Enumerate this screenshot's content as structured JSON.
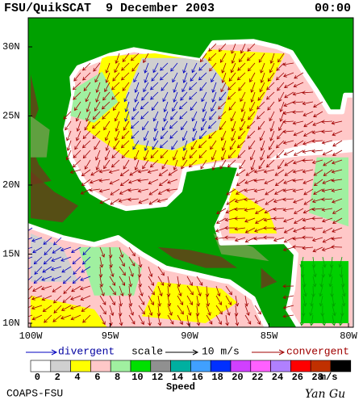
{
  "header": {
    "title": "FSU/QuikSCAT  9 December 2003",
    "time": "00:00"
  },
  "map": {
    "lat_labels": [
      "30N",
      "25N",
      "20N",
      "15N",
      "10N"
    ],
    "lon_labels": [
      "100W",
      "95W",
      "90W",
      "85W",
      "80W"
    ]
  },
  "legend": {
    "divergent": "divergent",
    "scale": "scale",
    "scale_value": "10 m/s",
    "convergent": "convergent"
  },
  "colorbar": {
    "labels": [
      0,
      2,
      4,
      6,
      8,
      10,
      12,
      14,
      16,
      18,
      20,
      22,
      24,
      26,
      28
    ],
    "unit": "m/s",
    "title": "Speed",
    "colors": [
      "#ffffff",
      "#d0d0d0",
      "#ffff00",
      "#ffc8c8",
      "#a0f0a0",
      "#00e000",
      "#909090",
      "#00b0a0",
      "#40a0ff",
      "#0030ff",
      "#d040ff",
      "#ff60ff",
      "#b080ff",
      "#ff0000",
      "#c03000",
      "#000000"
    ]
  },
  "footer": {
    "left": "COAPS-FSU",
    "right": "Yan Gu"
  }
}
